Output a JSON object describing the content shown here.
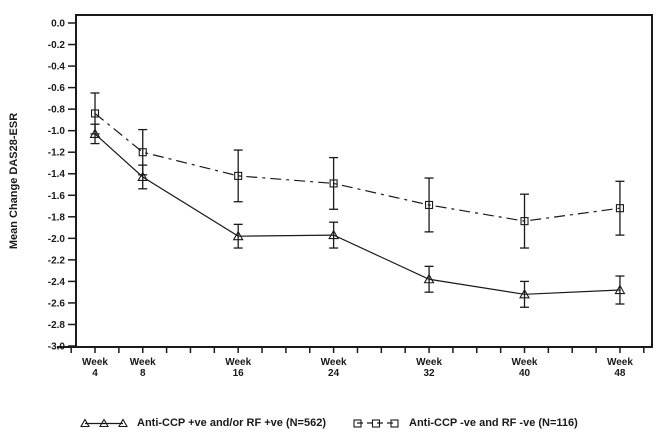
{
  "figure": {
    "background": "#ffffff",
    "ink_color": "#1a1a1a"
  },
  "chart_data": {
    "type": "line",
    "title": "",
    "xlabel": "",
    "ylabel": "Mean Change DAS28-ESR",
    "x_unit_label": "Week",
    "x": [
      4,
      8,
      16,
      24,
      32,
      40,
      48
    ],
    "x_minor_tick_step": 2,
    "xlim": [
      2,
      51
    ],
    "ylim": [
      -3.0,
      0.0
    ],
    "grid": "off",
    "legend_position": "bottom",
    "y_tick_labels": [
      "0.0",
      "-0.2",
      "-0.4",
      "-0.6",
      "-0.8",
      "-1.0",
      "-1.2",
      "-1.4",
      "-1.6",
      "-1.8",
      "-2.0",
      "-2.2",
      "-2.4",
      "-2.6",
      "-2.8",
      "-3.0"
    ],
    "series": [
      {
        "name": "Anti-CCP +ve and/or RF +ve (N=562)",
        "marker": "triangle",
        "line": "solid",
        "values": [
          -1.03,
          -1.43,
          -1.98,
          -1.97,
          -2.38,
          -2.52,
          -2.48
        ],
        "error": [
          0.09,
          0.11,
          0.11,
          0.12,
          0.12,
          0.12,
          0.13
        ]
      },
      {
        "name": "Anti-CCP -ve and RF -ve (N=116)",
        "marker": "square",
        "line": "dash-dot",
        "values": [
          -0.84,
          -1.2,
          -1.42,
          -1.49,
          -1.69,
          -1.84,
          -1.72
        ],
        "error": [
          0.19,
          0.21,
          0.24,
          0.24,
          0.25,
          0.25,
          0.25
        ]
      }
    ]
  }
}
